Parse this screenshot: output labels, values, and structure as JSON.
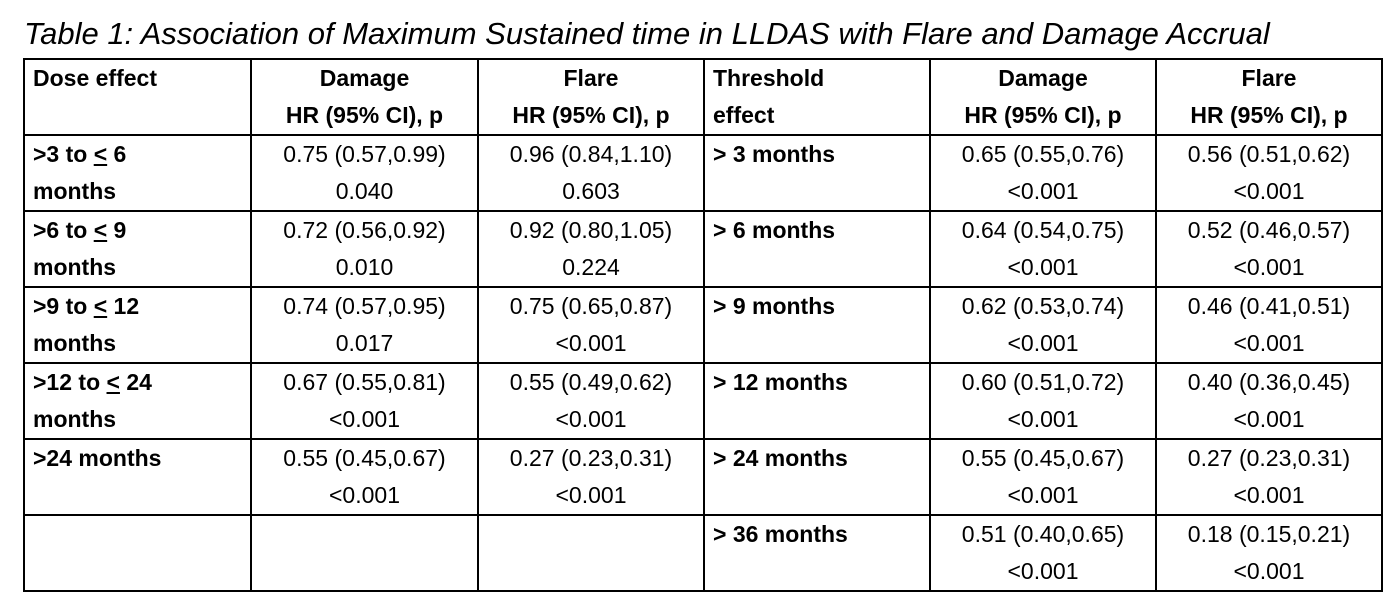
{
  "caption": "Table 1: Association of Maximum Sustained time in LLDAS with Flare and Damage Accrual",
  "headers": {
    "dose_effect": "Dose effect",
    "damage_1": "Damage",
    "damage_2": "HR (95% CI), p",
    "flare_1": "Flare",
    "flare_2": "HR (95% CI), p",
    "threshold_1": "Threshold",
    "threshold_2": "effect",
    "t_damage_1": "Damage",
    "t_damage_2": "HR (95% CI), p",
    "t_flare_1": "Flare",
    "t_flare_2": "HR (95% CI), p"
  },
  "rows": [
    {
      "dose_pre": ">3 to ",
      "dose_le": "<",
      "dose_post": " 6",
      "dose_line2": "months",
      "damage_hr": "0.75 (0.57,0.99)",
      "damage_p": "0.040",
      "flare_hr": "0.96 (0.84,1.10)",
      "flare_p": "0.603",
      "threshold": "> 3 months",
      "t_damage_hr": "0.65 (0.55,0.76)",
      "t_damage_p": "<0.001",
      "t_flare_hr": "0.56 (0.51,0.62)",
      "t_flare_p": "<0.001"
    },
    {
      "dose_pre": ">6 to ",
      "dose_le": "<",
      "dose_post": " 9",
      "dose_line2": "months",
      "damage_hr": "0.72 (0.56,0.92)",
      "damage_p": "0.010",
      "flare_hr": "0.92 (0.80,1.05)",
      "flare_p": "0.224",
      "threshold": "> 6 months",
      "t_damage_hr": "0.64 (0.54,0.75)",
      "t_damage_p": "<0.001",
      "t_flare_hr": "0.52 (0.46,0.57)",
      "t_flare_p": "<0.001"
    },
    {
      "dose_pre": ">9 to ",
      "dose_le": "<",
      "dose_post": " 12",
      "dose_line2": "months",
      "damage_hr": "0.74 (0.57,0.95)",
      "damage_p": "0.017",
      "flare_hr": "0.75 (0.65,0.87)",
      "flare_p": "<0.001",
      "threshold": "> 9 months",
      "t_damage_hr": "0.62 (0.53,0.74)",
      "t_damage_p": "<0.001",
      "t_flare_hr": "0.46 (0.41,0.51)",
      "t_flare_p": "<0.001"
    },
    {
      "dose_pre": ">12 to ",
      "dose_le": "<",
      "dose_post": " 24",
      "dose_line2": "months",
      "damage_hr": "0.67 (0.55,0.81)",
      "damage_p": "<0.001",
      "flare_hr": "0.55 (0.49,0.62)",
      "flare_p": "<0.001",
      "threshold": "> 12 months",
      "t_damage_hr": "0.60 (0.51,0.72)",
      "t_damage_p": "<0.001",
      "t_flare_hr": "0.40 (0.36,0.45)",
      "t_flare_p": "<0.001"
    },
    {
      "dose_pre": ">24 months",
      "dose_le": "",
      "dose_post": "",
      "dose_line2": "",
      "damage_hr": "0.55 (0.45,0.67)",
      "damage_p": "<0.001",
      "flare_hr": "0.27 (0.23,0.31)",
      "flare_p": "<0.001",
      "threshold": "> 24 months",
      "t_damage_hr": "0.55 (0.45,0.67)",
      "t_damage_p": "<0.001",
      "t_flare_hr": "0.27 (0.23,0.31)",
      "t_flare_p": "<0.001"
    },
    {
      "dose_pre": "",
      "dose_le": "",
      "dose_post": "",
      "dose_line2": "",
      "damage_hr": "",
      "damage_p": "",
      "flare_hr": "",
      "flare_p": "",
      "threshold": "> 36 months",
      "t_damage_hr": "0.51 (0.40,0.65)",
      "t_damage_p": "<0.001",
      "t_flare_hr": "0.18 (0.15,0.21)",
      "t_flare_p": "<0.001"
    }
  ]
}
